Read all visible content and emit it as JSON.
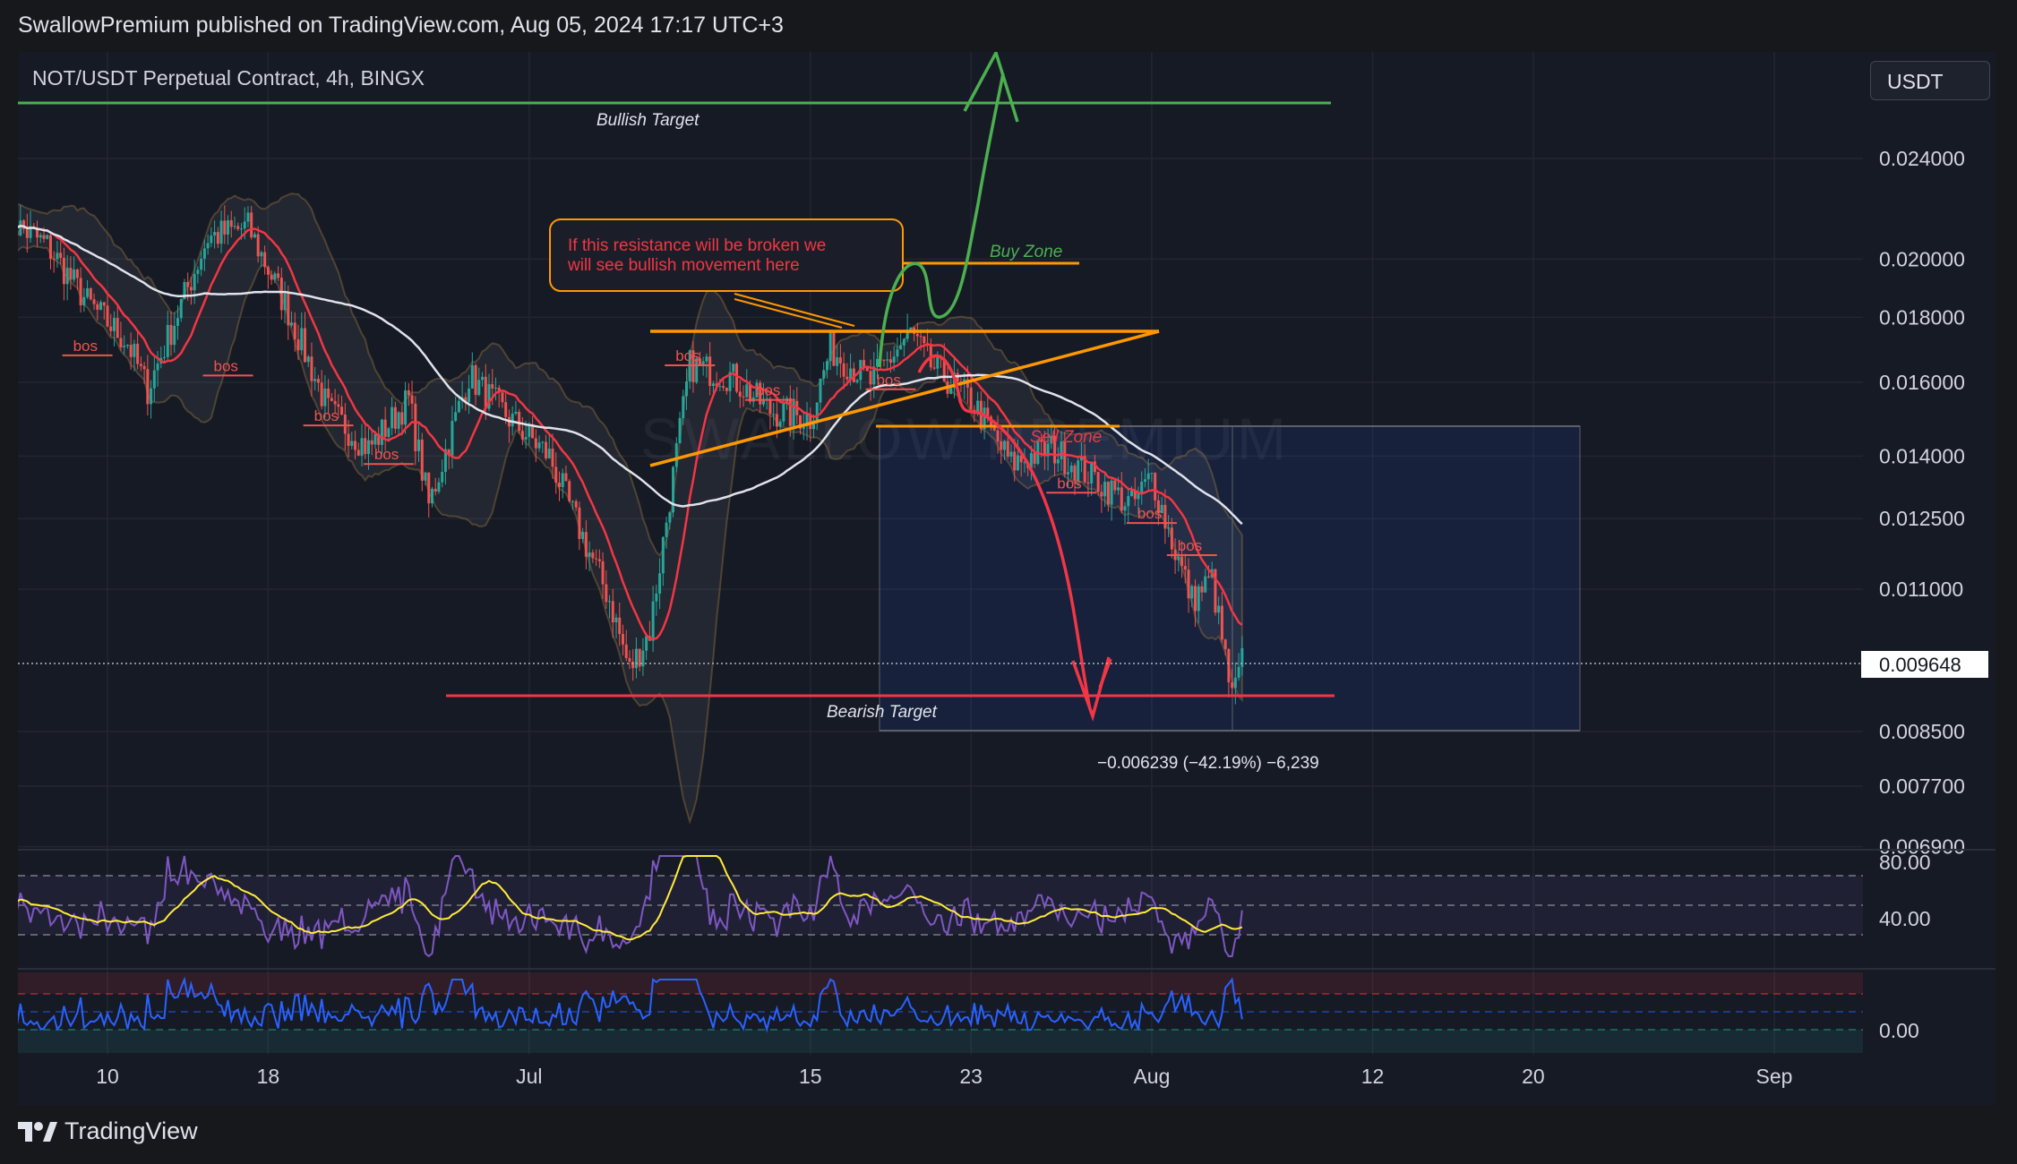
{
  "header": {
    "publisher_line": "SwallowPremium published on TradingView.com, Aug 05, 2024 17:17 UTC+3"
  },
  "chart_title": "NOT/USDT Perpetual Contract, 4h, BINGX",
  "currency": "USDT",
  "watermark": "SWALLOW PREMIUM",
  "footer": {
    "logo_text": "TradingView"
  },
  "colors": {
    "background": "#161a25",
    "up": "#26a69a",
    "down": "#ef5350",
    "bullish": "#4caf50",
    "bearish": "#f23645",
    "orange": "#ff9800",
    "rsi": "#7e57c2",
    "rsi_ma": "#ffeb3b",
    "osc": "#2962ff"
  },
  "annotations": {
    "bullish_target": "Bullish Target",
    "bearish_target": "Bearish Target",
    "buy_zone": "Buy Zone",
    "sell_zone": "Sell Zone",
    "callout_line1": "If this resistance will be broken we",
    "callout_line2": "will see bullish movement here",
    "measure": "−0.006239 (−42.19%) −6,239",
    "bos": "bos"
  },
  "chart_data": {
    "type": "candlestick",
    "title": "NOT/USDT Perpetual Contract, 4h, BINGX",
    "price_scale": "log",
    "y_ticks": [
      "0.024000",
      "0.020000",
      "0.018000",
      "0.016000",
      "0.014000",
      "0.012500",
      "0.011000",
      "0.008500",
      "0.007700",
      "0.006900"
    ],
    "current_price": "0.009648",
    "x_ticks": [
      "10",
      "18",
      "Jul",
      "15",
      "23",
      "Aug",
      "12",
      "20",
      "Sep"
    ],
    "x_tick_dates": [
      "2024-06-10",
      "2024-06-18",
      "2024-07-01",
      "2024-07-15",
      "2024-07-23",
      "2024-08-01",
      "2024-08-12",
      "2024-08-20",
      "2024-09-01"
    ],
    "x_range": [
      "2024-06-05",
      "2024-09-05"
    ],
    "y_range": [
      0.0066,
      0.0275
    ],
    "close_path": [
      [
        "2024-06-05",
        0.0215
      ],
      [
        "2024-06-07",
        0.0205
      ],
      [
        "2024-06-09",
        0.0185
      ],
      [
        "2024-06-11",
        0.0172
      ],
      [
        "2024-06-12",
        0.0158
      ],
      [
        "2024-06-14",
        0.019
      ],
      [
        "2024-06-15",
        0.0208
      ],
      [
        "2024-06-17",
        0.0212
      ],
      [
        "2024-06-19",
        0.0182
      ],
      [
        "2024-06-21",
        0.0152
      ],
      [
        "2024-06-23",
        0.0142
      ],
      [
        "2024-06-25",
        0.0155
      ],
      [
        "2024-06-26",
        0.0128
      ],
      [
        "2024-06-28",
        0.0162
      ],
      [
        "2024-06-30",
        0.015
      ],
      [
        "2024-07-02",
        0.014
      ],
      [
        "2024-07-03",
        0.0128
      ],
      [
        "2024-07-05",
        0.0108
      ],
      [
        "2024-07-06",
        0.0095
      ],
      [
        "2024-07-07",
        0.0102
      ],
      [
        "2024-07-09",
        0.0165
      ],
      [
        "2024-07-11",
        0.0162
      ],
      [
        "2024-07-13",
        0.0152
      ],
      [
        "2024-07-15",
        0.015
      ],
      [
        "2024-07-16",
        0.017
      ],
      [
        "2024-07-18",
        0.016
      ],
      [
        "2024-07-20",
        0.0175
      ],
      [
        "2024-07-21",
        0.0165
      ],
      [
        "2024-07-23",
        0.0155
      ],
      [
        "2024-07-25",
        0.0138
      ],
      [
        "2024-07-27",
        0.0142
      ],
      [
        "2024-07-29",
        0.0135
      ],
      [
        "2024-07-31",
        0.0128
      ],
      [
        "2024-08-01",
        0.0135
      ],
      [
        "2024-08-02",
        0.012
      ],
      [
        "2024-08-03",
        0.0108
      ],
      [
        "2024-08-04",
        0.0112
      ],
      [
        "2024-08-05",
        0.009
      ],
      [
        "2024-08-05T12",
        0.009648
      ]
    ],
    "levels": {
      "bullish_target": 0.0262,
      "bearish_target": 0.0091,
      "buy_zone": 0.0197,
      "resistance": 0.0176,
      "sell_zone": 0.0149
    },
    "indicators": {
      "rsi_ticks": [
        "80.00",
        "40.00"
      ],
      "oscillator_ticks": [
        "0.00"
      ]
    }
  }
}
